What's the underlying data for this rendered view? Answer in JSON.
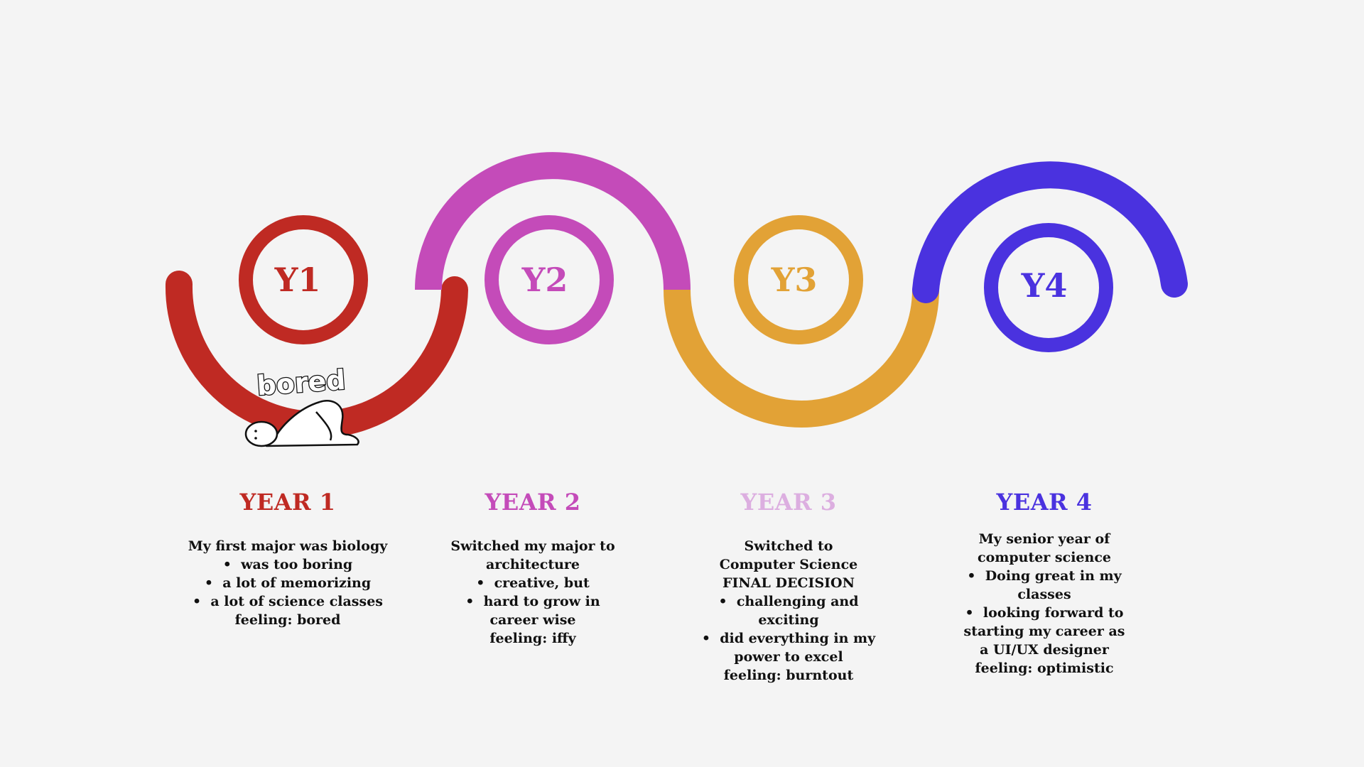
{
  "colors": {
    "year1": "#bf2a23",
    "year2": "#c44bb9",
    "year3": "#e2a236",
    "year3_title": "#dcaee0",
    "year4": "#4a32df",
    "background": "#f4f4f4"
  },
  "sticker": {
    "text": "bored",
    "icon": "person-lying-down-icon"
  },
  "years": [
    {
      "badge": "Y1",
      "title": "YEAR 1",
      "intro": [
        "My first major was biology"
      ],
      "bullets": [
        "was too boring",
        "a lot of memorizing",
        "a lot of science classes"
      ],
      "feeling": "feeling: bored"
    },
    {
      "badge": "Y2",
      "title": "YEAR 2",
      "intro": [
        "Switched my major to architecture"
      ],
      "bullets": [
        "creative, but",
        "hard to grow in career wise"
      ],
      "feeling": "feeling: iffy"
    },
    {
      "badge": "Y3",
      "title": "YEAR 3",
      "intro": [
        "Switched to Computer Science",
        "FINAL DECISION"
      ],
      "bullets": [
        "challenging and exciting",
        "did everything in my power to excel"
      ],
      "feeling": "feeling: burntout"
    },
    {
      "badge": "Y4",
      "title": "YEAR 4",
      "intro": [
        "My senior year of computer science"
      ],
      "bullets": [
        "Doing great in my classes",
        "looking forward to starting my career as a UI/UX designer"
      ],
      "feeling": "feeling: optimistic"
    }
  ]
}
